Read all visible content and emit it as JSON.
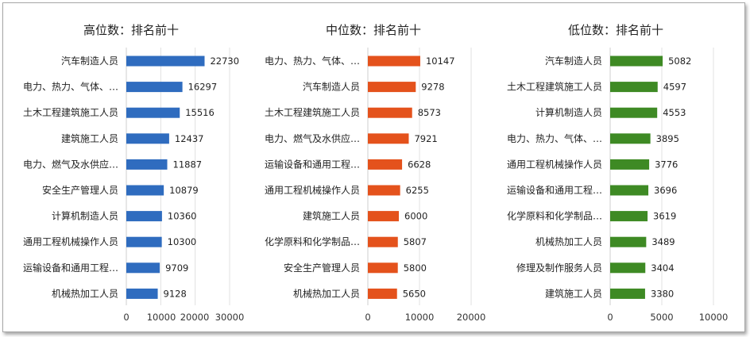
{
  "chart_data": [
    {
      "type": "bar",
      "orientation": "horizontal",
      "title": "高位数：排名前十",
      "color": "#2f6cbf",
      "categories": [
        "汽车制造人员",
        "电力、热力、气体、…",
        "土木工程建筑施工人员",
        "建筑施工人员",
        "电力、燃气及水供应…",
        "安全生产管理人员",
        "计算机制造人员",
        "通用工程机械操作人员",
        "运输设备和通用工程…",
        "机械热加工人员"
      ],
      "values": [
        22730,
        16297,
        15516,
        12437,
        11887,
        10879,
        10360,
        10300,
        9709,
        9128
      ],
      "xlim": [
        0,
        30000
      ],
      "ticks": [
        "0",
        "10000",
        "20000",
        "30000"
      ],
      "grid": true
    },
    {
      "type": "bar",
      "orientation": "horizontal",
      "title": "中位数：排名前十",
      "color": "#e4521c",
      "categories": [
        "电力、热力、气体、…",
        "汽车制造人员",
        "土木工程建筑施工人员",
        "电力、燃气及水供应…",
        "运输设备和通用工程…",
        "通用工程机械操作人员",
        "建筑施工人员",
        "化学原料和化学制品…",
        "安全生产管理人员",
        "机械热加工人员"
      ],
      "values": [
        10147,
        9278,
        8573,
        7921,
        6628,
        6255,
        6000,
        5807,
        5800,
        5650
      ],
      "xlim": [
        0,
        20000
      ],
      "ticks": [
        "0",
        "10000",
        "20000"
      ],
      "grid": true
    },
    {
      "type": "bar",
      "orientation": "horizontal",
      "title": "低位数：排名前十",
      "color": "#3e8a24",
      "categories": [
        "汽车制造人员",
        "土木工程建筑施工人员",
        "计算机制造人员",
        "电力、热力、气体、…",
        "通用工程机械操作人员",
        "运输设备和通用工程…",
        "化学原料和化学制品…",
        "机械热加工人员",
        "修理及制作服务人员",
        "建筑施工人员"
      ],
      "values": [
        5082,
        4597,
        4553,
        3895,
        3776,
        3696,
        3619,
        3489,
        3404,
        3380
      ],
      "xlim": [
        0,
        10000
      ],
      "ticks": [
        "0",
        "5000",
        "10000"
      ],
      "grid": true
    }
  ]
}
